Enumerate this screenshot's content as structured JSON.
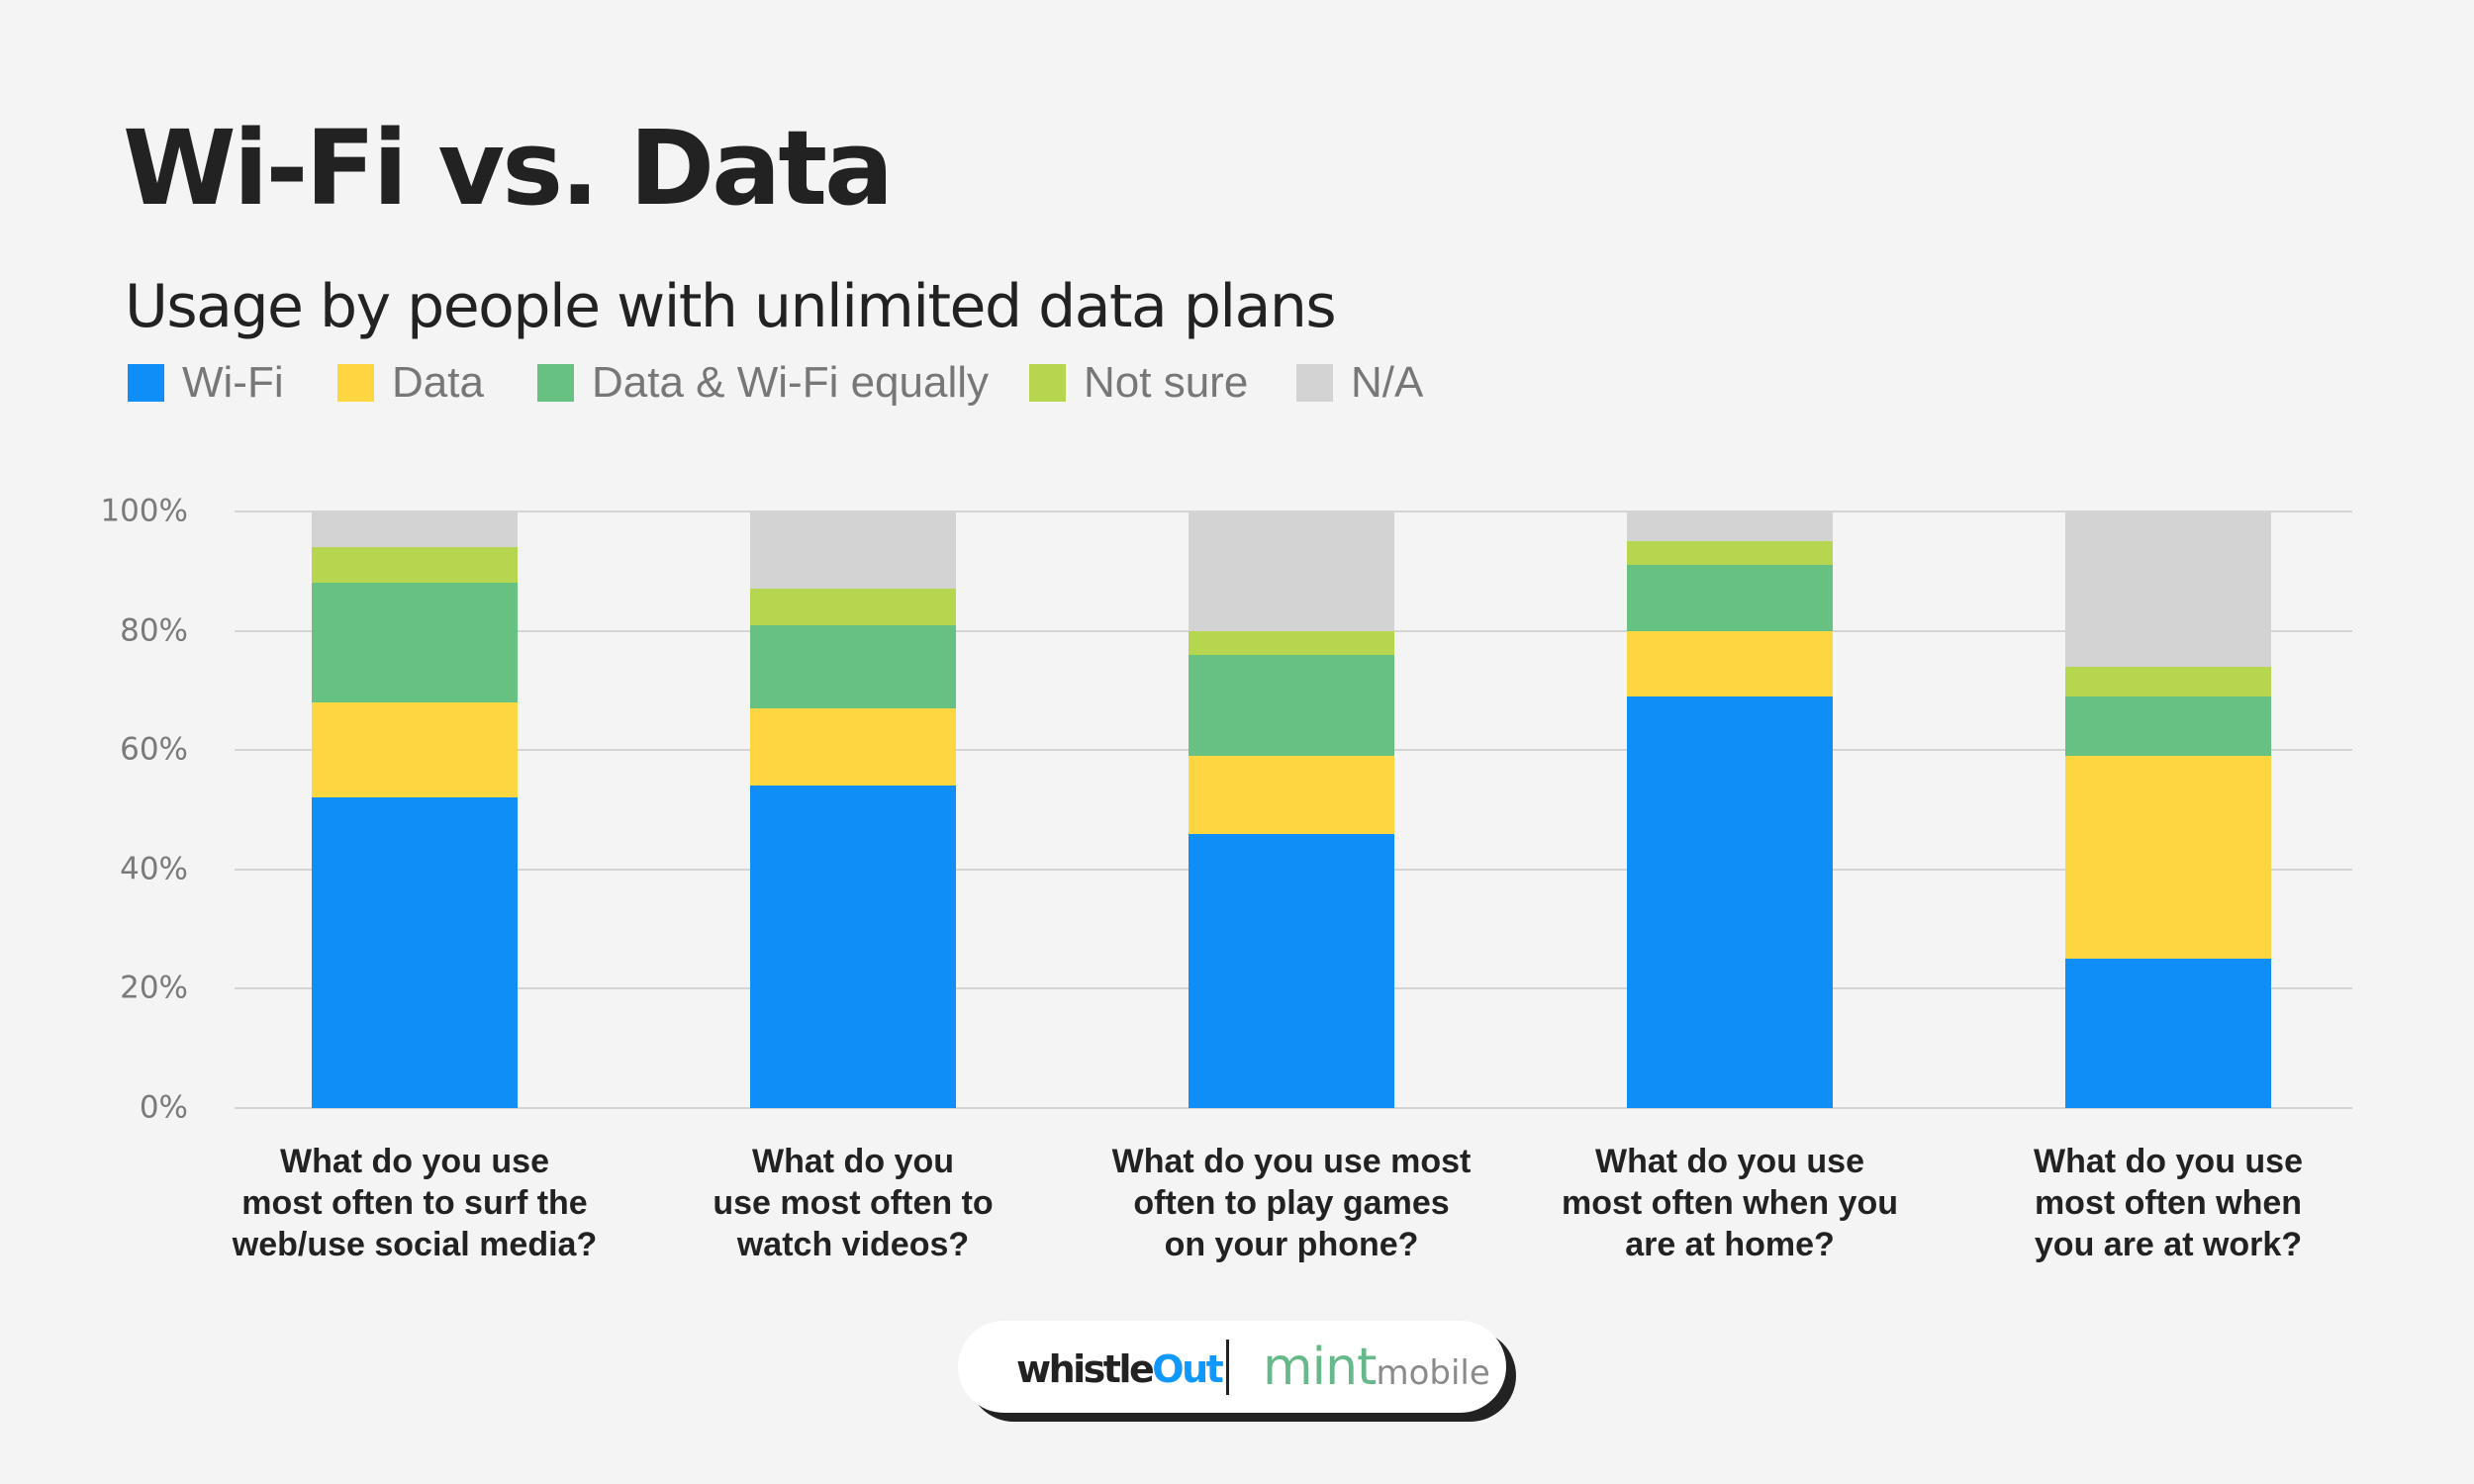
{
  "header": {
    "title": "Wi-Fi vs. Data",
    "subtitle": "Usage by people with unlimited data plans"
  },
  "legend": [
    {
      "label": "Wi-Fi",
      "color": "#0f8ef8",
      "x": 0
    },
    {
      "label": "Data",
      "color": "#fed642",
      "x": 212
    },
    {
      "label": "Data & Wi-Fi equally",
      "color": "#66c182",
      "x": 414
    },
    {
      "label": "Not sure",
      "color": "#b7d64f",
      "x": 911
    },
    {
      "label": "N/A",
      "color": "#d3d3d3",
      "x": 1181
    }
  ],
  "y_axis": {
    "ticks": [
      "0%",
      "20%",
      "40%",
      "60%",
      "80%",
      "100%"
    ]
  },
  "chart_data": {
    "type": "bar",
    "stacked": true,
    "title": "Wi-Fi vs. Data",
    "subtitle": "Usage by people with unlimited data plans",
    "xlabel": "",
    "ylabel": "",
    "ylim": [
      0,
      100
    ],
    "y_ticks": [
      "0%",
      "20%",
      "40%",
      "60%",
      "80%",
      "100%"
    ],
    "grid": true,
    "legend_position": "top-left",
    "categories": [
      "What do you use\nmost often to surf the\nweb/use social media?",
      "What do you\nuse most often to\nwatch videos?",
      "What do you use most\noften to play games\non your phone?",
      "What do you use\nmost often when you\nare at home?",
      "What do you use\nmost often when\nyou are at work?"
    ],
    "series": [
      {
        "name": "Wi-Fi",
        "color": "#0f8ef8",
        "values": [
          52,
          54,
          46,
          69,
          25
        ]
      },
      {
        "name": "Data",
        "color": "#fed642",
        "values": [
          16,
          13,
          13,
          11,
          34
        ]
      },
      {
        "name": "Data & Wi-Fi equally",
        "color": "#66c182",
        "values": [
          20,
          14,
          17,
          11,
          10
        ]
      },
      {
        "name": "Not sure",
        "color": "#b7d64f",
        "values": [
          6,
          6,
          4,
          4,
          5
        ]
      },
      {
        "name": "N/A",
        "color": "#d3d3d3",
        "values": [
          6,
          13,
          20,
          5,
          26
        ]
      }
    ]
  },
  "footer": {
    "logo_left_part1": "whistle",
    "logo_left_part2": "Out",
    "logo_right_part1": "mint",
    "logo_right_part2": "mobile"
  }
}
